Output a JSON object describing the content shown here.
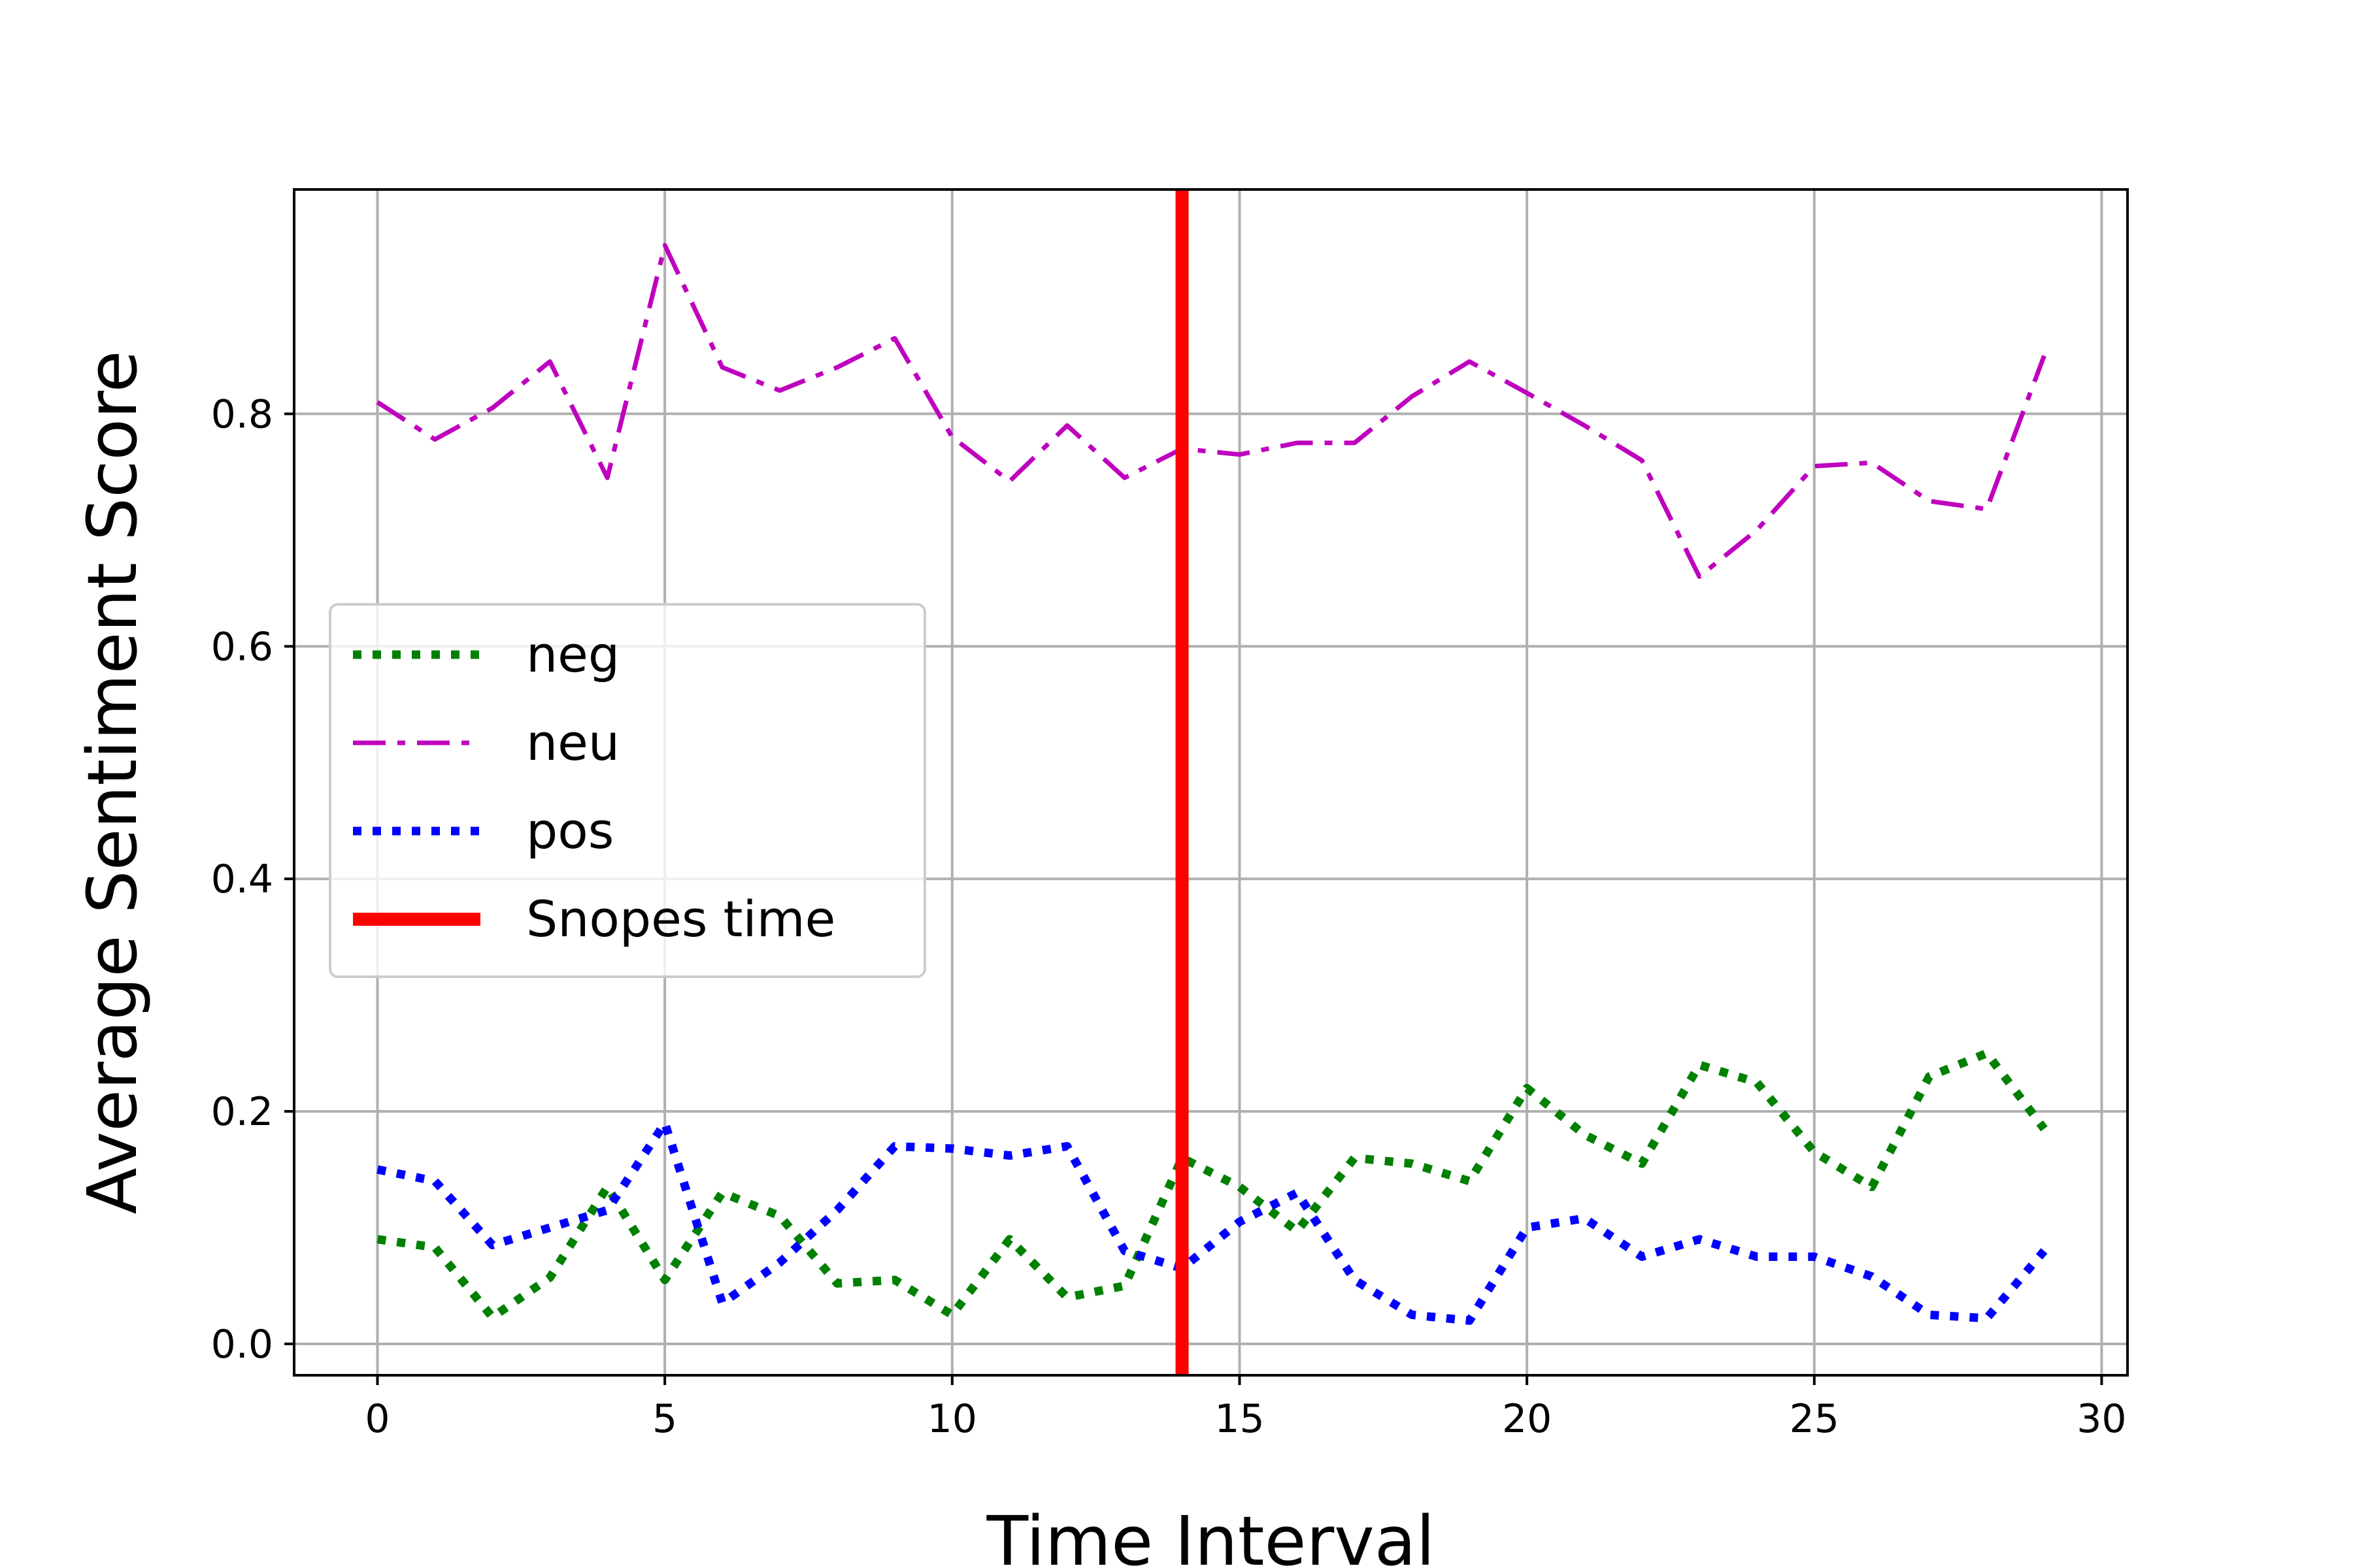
{
  "chart_data": {
    "type": "line",
    "title": "",
    "xlabel": "Time Interval",
    "ylabel": "Average Sentiment Score",
    "xlim": [
      -1.45,
      30.45
    ],
    "ylim": [
      -0.027,
      0.993
    ],
    "xticks": [
      0,
      5,
      10,
      15,
      20,
      25,
      30
    ],
    "yticks": [
      0.0,
      0.2,
      0.4,
      0.6,
      0.8
    ],
    "xtick_labels": [
      "0",
      "5",
      "10",
      "15",
      "20",
      "25",
      "30"
    ],
    "ytick_labels": [
      "0.0",
      "0.2",
      "0.4",
      "0.6",
      "0.8"
    ],
    "grid": true,
    "legend_position": "center-left",
    "x": [
      0,
      1,
      2,
      3,
      4,
      5,
      6,
      7,
      8,
      9,
      10,
      11,
      12,
      13,
      14,
      15,
      16,
      17,
      18,
      19,
      20,
      21,
      22,
      23,
      24,
      25,
      26,
      27,
      28,
      29
    ],
    "series": [
      {
        "name": "neg",
        "color": "#008000",
        "style": "dotted",
        "values": [
          0.09,
          0.083,
          0.023,
          0.057,
          0.135,
          0.055,
          0.13,
          0.11,
          0.052,
          0.055,
          0.025,
          0.09,
          0.04,
          0.05,
          0.16,
          0.135,
          0.097,
          0.16,
          0.155,
          0.14,
          0.22,
          0.18,
          0.155,
          0.24,
          0.225,
          0.165,
          0.135,
          0.23,
          0.25,
          0.185
        ]
      },
      {
        "name": "neu",
        "color": "#bf00bf",
        "style": "dashdot",
        "values": [
          0.81,
          0.778,
          0.805,
          0.845,
          0.745,
          0.945,
          0.84,
          0.82,
          0.84,
          0.865,
          0.78,
          0.742,
          0.79,
          0.745,
          0.77,
          0.765,
          0.775,
          0.775,
          0.815,
          0.845,
          0.818,
          0.79,
          0.76,
          0.66,
          0.7,
          0.755,
          0.758,
          0.725,
          0.718,
          0.85
        ]
      },
      {
        "name": "pos",
        "color": "#0000ff",
        "style": "dotted",
        "values": [
          0.15,
          0.14,
          0.085,
          0.1,
          0.115,
          0.19,
          0.035,
          0.07,
          0.115,
          0.17,
          0.168,
          0.162,
          0.17,
          0.08,
          0.065,
          0.105,
          0.13,
          0.055,
          0.025,
          0.02,
          0.1,
          0.108,
          0.075,
          0.09,
          0.075,
          0.075,
          0.058,
          0.025,
          0.022,
          0.08
        ]
      }
    ],
    "vline": {
      "name": "Snopes time",
      "x": 14,
      "color": "#ff0000"
    },
    "legend": [
      {
        "label": "neg",
        "color": "#008000",
        "style": "dotted"
      },
      {
        "label": "neu",
        "color": "#bf00bf",
        "style": "dashdot"
      },
      {
        "label": "pos",
        "color": "#0000ff",
        "style": "dotted"
      },
      {
        "label": "Snopes time",
        "color": "#ff0000",
        "style": "solid"
      }
    ]
  }
}
